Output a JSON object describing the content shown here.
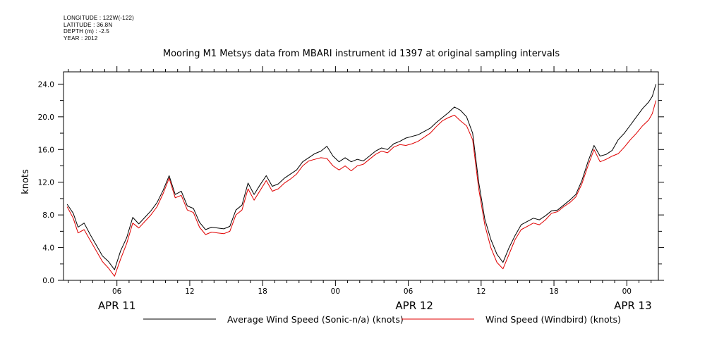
{
  "meta_lines": [
    "LONGITUDE : 122W(-122)",
    "LATITUDE : 36.8N",
    "DEPTH (m) : -2.5",
    "YEAR : 2012"
  ],
  "chart_data": {
    "type": "line",
    "title": "Mooring M1 Metsys data from MBARI instrument id 1397 at original sampling intervals",
    "ylabel": "knots",
    "xlabel": "",
    "ylim": [
      0,
      25.5
    ],
    "xlim_hours": [
      1.6,
      50.6
    ],
    "yticks": [
      "0.0",
      "4.0",
      "8.0",
      "12.0",
      "16.0",
      "20.0",
      "24.0"
    ],
    "ytick_values": [
      0,
      4,
      8,
      12,
      16,
      20,
      24
    ],
    "xticks": [
      "06",
      "12",
      "18",
      "00",
      "06",
      "12",
      "18",
      "00"
    ],
    "xtick_hours": [
      6,
      12,
      18,
      24,
      30,
      36,
      42,
      48
    ],
    "date_labels": [
      "APR 11",
      "APR 12",
      "APR 13"
    ],
    "date_label_hours": [
      6,
      30.5,
      48.5
    ],
    "grid": false,
    "legend_position": "bottom",
    "series": [
      {
        "name": "Average Wind Speed (Sonic-n/a) (knots)",
        "color": "#000000",
        "x": [
          1.9,
          2.4,
          2.8,
          3.3,
          3.8,
          4.3,
          4.8,
          5.3,
          5.8,
          6.3,
          6.8,
          7.3,
          7.8,
          8.3,
          8.8,
          9.3,
          9.8,
          10.3,
          10.8,
          11.3,
          11.8,
          12.3,
          12.8,
          13.3,
          13.8,
          14.3,
          14.8,
          15.3,
          15.8,
          16.3,
          16.8,
          17.3,
          17.8,
          18.3,
          18.8,
          19.3,
          19.8,
          20.3,
          20.8,
          21.3,
          21.8,
          22.3,
          22.8,
          23.3,
          23.8,
          24.3,
          24.8,
          25.3,
          25.8,
          26.3,
          26.8,
          27.3,
          27.8,
          28.3,
          28.8,
          29.3,
          29.8,
          30.3,
          30.8,
          31.3,
          31.8,
          32.3,
          32.8,
          33.3,
          33.8,
          34.3,
          34.8,
          35.3,
          35.8,
          36.3,
          36.8,
          37.3,
          37.8,
          38.3,
          38.8,
          39.3,
          39.8,
          40.3,
          40.8,
          41.3,
          41.8,
          42.3,
          42.8,
          43.3,
          43.8,
          44.3,
          44.8,
          45.3,
          45.8,
          46.3,
          46.8,
          47.3,
          47.8,
          48.3,
          48.8,
          49.3,
          49.8,
          50.1,
          50.4
        ],
        "y": [
          9.3,
          8.2,
          6.5,
          7.0,
          5.6,
          4.3,
          3.0,
          2.3,
          1.3,
          3.6,
          5.2,
          7.7,
          6.9,
          7.7,
          8.5,
          9.5,
          11.0,
          12.8,
          10.5,
          10.9,
          9.1,
          8.8,
          7.1,
          6.2,
          6.5,
          6.4,
          6.3,
          6.6,
          8.6,
          9.2,
          11.9,
          10.5,
          11.7,
          12.8,
          11.5,
          11.8,
          12.5,
          13.0,
          13.5,
          14.5,
          15.0,
          15.5,
          15.8,
          16.4,
          15.2,
          14.5,
          15.0,
          14.5,
          14.8,
          14.6,
          15.2,
          15.8,
          16.2,
          16.0,
          16.7,
          17.0,
          17.4,
          17.6,
          17.8,
          18.2,
          18.6,
          19.3,
          19.9,
          20.5,
          21.2,
          20.8,
          20.0,
          18.0,
          12.0,
          7.5,
          5.0,
          3.2,
          2.2,
          4.0,
          5.5,
          6.8,
          7.2,
          7.6,
          7.4,
          7.9,
          8.5,
          8.6,
          9.2,
          9.8,
          10.5,
          12.2,
          14.5,
          16.5,
          15.2,
          15.4,
          15.9,
          17.2,
          18.0,
          19.0,
          20.0,
          21.0,
          21.8,
          22.5,
          24.0
        ]
      },
      {
        "name": "Wind Speed (Windbird) (knots)",
        "color": "#e00000",
        "x": [
          1.9,
          2.4,
          2.8,
          3.3,
          3.8,
          4.3,
          4.8,
          5.3,
          5.8,
          6.3,
          6.8,
          7.3,
          7.8,
          8.3,
          8.8,
          9.3,
          9.8,
          10.3,
          10.8,
          11.3,
          11.8,
          12.3,
          12.8,
          13.3,
          13.8,
          14.3,
          14.8,
          15.3,
          15.8,
          16.3,
          16.8,
          17.3,
          17.8,
          18.3,
          18.8,
          19.3,
          19.8,
          20.3,
          20.8,
          21.3,
          21.8,
          22.3,
          22.8,
          23.3,
          23.8,
          24.3,
          24.8,
          25.3,
          25.8,
          26.3,
          26.8,
          27.3,
          27.8,
          28.3,
          28.8,
          29.3,
          29.8,
          30.3,
          30.8,
          31.3,
          31.8,
          32.3,
          32.8,
          33.3,
          33.8,
          34.3,
          34.8,
          35.3,
          35.8,
          36.3,
          36.8,
          37.3,
          37.8,
          38.3,
          38.8,
          39.3,
          39.8,
          40.3,
          40.8,
          41.3,
          41.8,
          42.3,
          42.8,
          43.3,
          43.8,
          44.3,
          44.8,
          45.3,
          45.8,
          46.3,
          46.8,
          47.3,
          47.8,
          48.3,
          48.8,
          49.3,
          49.8,
          50.1,
          50.4
        ],
        "y": [
          9.0,
          7.6,
          5.8,
          6.2,
          4.9,
          3.6,
          2.3,
          1.5,
          0.5,
          2.6,
          4.5,
          7.0,
          6.4,
          7.2,
          8.0,
          9.0,
          10.6,
          12.5,
          10.1,
          10.4,
          8.6,
          8.3,
          6.5,
          5.6,
          5.9,
          5.8,
          5.7,
          6.0,
          8.0,
          8.6,
          11.2,
          9.8,
          11.0,
          12.2,
          10.9,
          11.2,
          11.9,
          12.4,
          13.0,
          14.0,
          14.6,
          14.8,
          15.0,
          14.9,
          14.0,
          13.5,
          14.0,
          13.4,
          14.0,
          14.2,
          14.8,
          15.4,
          15.8,
          15.6,
          16.3,
          16.6,
          16.5,
          16.7,
          17.0,
          17.5,
          18.0,
          18.8,
          19.5,
          19.9,
          20.2,
          19.5,
          18.9,
          17.2,
          11.2,
          6.8,
          4.0,
          2.2,
          1.4,
          3.2,
          5.0,
          6.2,
          6.6,
          7.0,
          6.8,
          7.4,
          8.2,
          8.4,
          9.0,
          9.5,
          10.2,
          11.8,
          14.0,
          16.0,
          14.5,
          14.8,
          15.2,
          15.5,
          16.3,
          17.2,
          18.0,
          18.9,
          19.6,
          20.4,
          22.0
        ]
      }
    ]
  }
}
